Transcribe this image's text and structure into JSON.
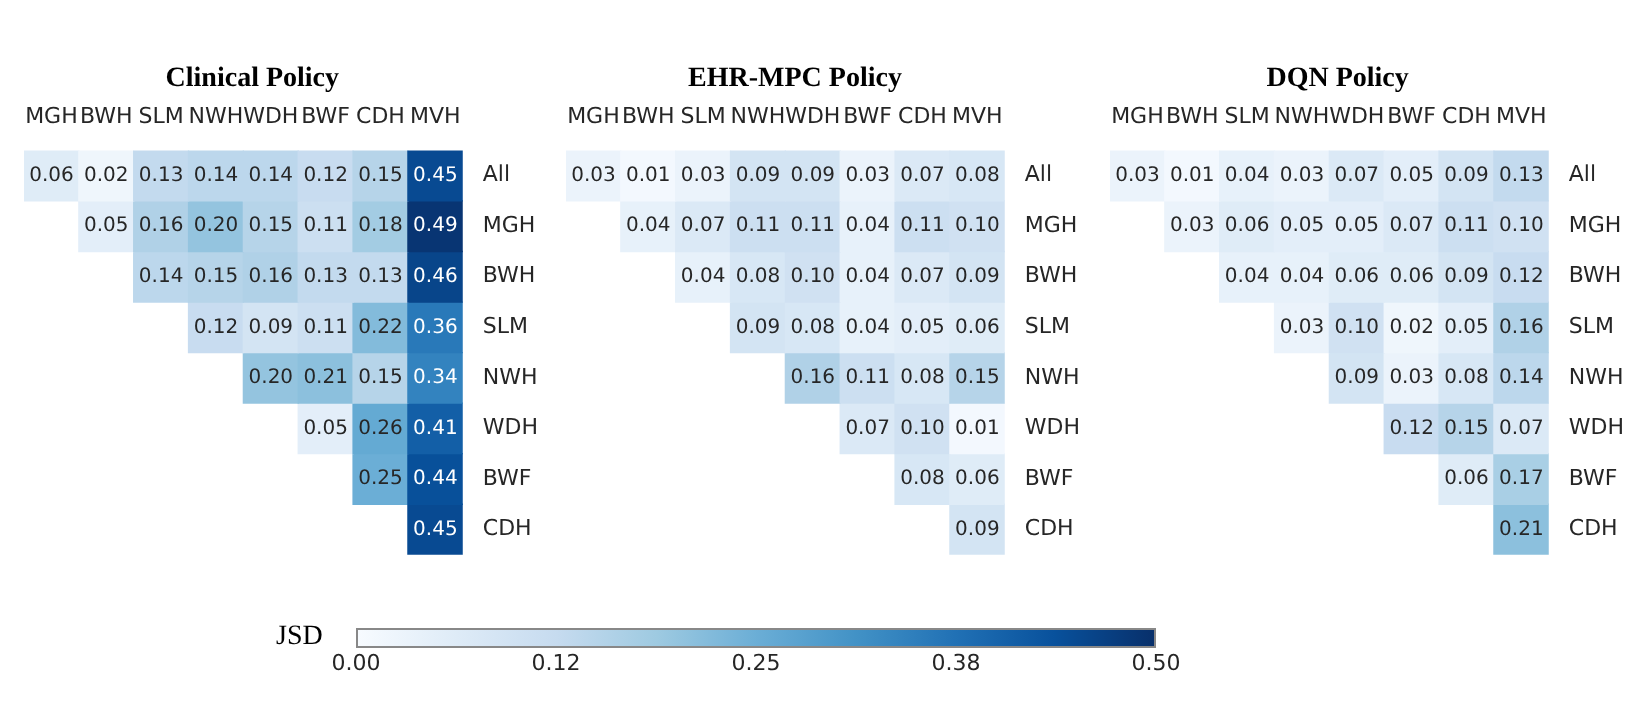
{
  "chart_data": [
    {
      "type": "heatmap",
      "title": "Clinical Policy",
      "categories": [
        "MGH",
        "BWH",
        "SLM",
        "NWH",
        "WDH",
        "BWF",
        "CDH",
        "MVH"
      ],
      "y_categories": [
        "All",
        "MGH",
        "BWH",
        "SLM",
        "NWH",
        "WDH",
        "BWF",
        "CDH"
      ],
      "cells": [
        [
          0.06,
          0.02,
          0.13,
          0.14,
          0.14,
          0.12,
          0.15,
          0.45
        ],
        [
          null,
          0.05,
          0.16,
          0.2,
          0.15,
          0.11,
          0.18,
          0.49
        ],
        [
          null,
          null,
          0.14,
          0.15,
          0.16,
          0.13,
          0.13,
          0.46
        ],
        [
          null,
          null,
          null,
          0.12,
          0.09,
          0.11,
          0.22,
          0.36
        ],
        [
          null,
          null,
          null,
          null,
          0.2,
          0.21,
          0.15,
          0.34
        ],
        [
          null,
          null,
          null,
          null,
          null,
          0.05,
          0.26,
          0.41
        ],
        [
          null,
          null,
          null,
          null,
          null,
          null,
          0.25,
          0.44
        ],
        [
          null,
          null,
          null,
          null,
          null,
          null,
          null,
          0.45
        ]
      ],
      "cell_labels": [
        [
          "0.06",
          "0.02",
          "0.13",
          "0.14",
          "0.14",
          "0.12",
          "0.15",
          "0.45"
        ],
        [
          null,
          "0.05",
          "0.16",
          "0.20",
          "0.15",
          "0.11",
          "0.18",
          "0.49"
        ],
        [
          null,
          null,
          "0.14",
          "0.15",
          "0.16",
          "0.13",
          "0.13",
          "0.46"
        ],
        [
          null,
          null,
          null,
          "0.12",
          "0.09",
          "0.11",
          "0.22",
          "0.36"
        ],
        [
          null,
          null,
          null,
          null,
          "0.20",
          "0.21",
          "0.15",
          "0.34"
        ],
        [
          null,
          null,
          null,
          null,
          null,
          "0.05",
          "0.26",
          "0.41"
        ],
        [
          null,
          null,
          null,
          null,
          null,
          null,
          "0.25",
          "0.44"
        ],
        [
          null,
          null,
          null,
          null,
          null,
          null,
          null,
          "0.45"
        ]
      ],
      "data_labels": true,
      "clabel": "JSD",
      "clim": [
        0,
        0.5
      ],
      "cticks": [
        {
          "value": 0,
          "label": "0.00"
        },
        {
          "value": 0.125,
          "label": "0.12"
        },
        {
          "value": 0.25,
          "label": "0.25"
        },
        {
          "value": 0.375,
          "label": "0.38"
        },
        {
          "value": 0.5,
          "label": "0.50"
        }
      ]
    },
    {
      "type": "heatmap",
      "title": "EHR-MPC Policy",
      "categories": [
        "MGH",
        "BWH",
        "SLM",
        "NWH",
        "WDH",
        "BWF",
        "CDH",
        "MVH"
      ],
      "y_categories": [
        "All",
        "MGH",
        "BWH",
        "SLM",
        "NWH",
        "WDH",
        "BWF",
        "CDH"
      ],
      "cells": [
        [
          0.03,
          0.01,
          0.03,
          0.09,
          0.09,
          0.03,
          0.07,
          0.08
        ],
        [
          null,
          0.04,
          0.07,
          0.11,
          0.11,
          0.04,
          0.11,
          0.1
        ],
        [
          null,
          null,
          0.04,
          0.08,
          0.1,
          0.04,
          0.07,
          0.09
        ],
        [
          null,
          null,
          null,
          0.09,
          0.08,
          0.04,
          0.05,
          0.06
        ],
        [
          null,
          null,
          null,
          null,
          0.16,
          0.11,
          0.08,
          0.15
        ],
        [
          null,
          null,
          null,
          null,
          null,
          0.07,
          0.1,
          0.01
        ],
        [
          null,
          null,
          null,
          null,
          null,
          null,
          0.08,
          0.06
        ],
        [
          null,
          null,
          null,
          null,
          null,
          null,
          null,
          0.09
        ]
      ],
      "cell_labels": [
        [
          "0.03",
          "0.01",
          "0.03",
          "0.09",
          "0.09",
          "0.03",
          "0.07",
          "0.08"
        ],
        [
          null,
          "0.04",
          "0.07",
          "0.11",
          "0.11",
          "0.04",
          "0.11",
          "0.10"
        ],
        [
          null,
          null,
          "0.04",
          "0.08",
          "0.10",
          "0.04",
          "0.07",
          "0.09"
        ],
        [
          null,
          null,
          null,
          "0.09",
          "0.08",
          "0.04",
          "0.05",
          "0.06"
        ],
        [
          null,
          null,
          null,
          null,
          "0.16",
          "0.11",
          "0.08",
          "0.15"
        ],
        [
          null,
          null,
          null,
          null,
          null,
          "0.07",
          "0.10",
          "0.01"
        ],
        [
          null,
          null,
          null,
          null,
          null,
          null,
          "0.08",
          "0.06"
        ],
        [
          null,
          null,
          null,
          null,
          null,
          null,
          null,
          "0.09"
        ]
      ],
      "data_labels": true
    },
    {
      "type": "heatmap",
      "title": "DQN Policy",
      "categories": [
        "MGH",
        "BWH",
        "SLM",
        "NWH",
        "WDH",
        "BWF",
        "CDH",
        "MVH"
      ],
      "y_categories": [
        "All",
        "MGH",
        "BWH",
        "SLM",
        "NWH",
        "WDH",
        "BWF",
        "CDH"
      ],
      "cells": [
        [
          0.03,
          0.01,
          0.04,
          0.03,
          0.07,
          0.05,
          0.09,
          0.13
        ],
        [
          null,
          0.03,
          0.06,
          0.05,
          0.05,
          0.07,
          0.11,
          0.1
        ],
        [
          null,
          null,
          0.04,
          0.04,
          0.06,
          0.06,
          0.09,
          0.12
        ],
        [
          null,
          null,
          null,
          0.03,
          0.1,
          0.02,
          0.05,
          0.16
        ],
        [
          null,
          null,
          null,
          null,
          0.09,
          0.03,
          0.08,
          0.14
        ],
        [
          null,
          null,
          null,
          null,
          null,
          0.12,
          0.15,
          0.07
        ],
        [
          null,
          null,
          null,
          null,
          null,
          null,
          0.06,
          0.17
        ],
        [
          null,
          null,
          null,
          null,
          null,
          null,
          null,
          0.21
        ]
      ],
      "cell_labels": [
        [
          "0.03",
          "0.01",
          "0.04",
          "0.03",
          "0.07",
          "0.05",
          "0.09",
          "0.13"
        ],
        [
          null,
          "0.03",
          "0.06",
          "0.05",
          "0.05",
          "0.07",
          "0.11",
          "0.10"
        ],
        [
          null,
          null,
          "0.04",
          "0.04",
          "0.06",
          "0.06",
          "0.09",
          "0.12"
        ],
        [
          null,
          null,
          null,
          "0.03",
          "0.10",
          "0.02",
          "0.05",
          "0.16"
        ],
        [
          null,
          null,
          null,
          null,
          "0.09",
          "0.03",
          "0.08",
          "0.14"
        ],
        [
          null,
          null,
          null,
          null,
          null,
          "0.12",
          "0.15",
          "0.07"
        ],
        [
          null,
          null,
          null,
          null,
          null,
          null,
          "0.06",
          "0.17"
        ],
        [
          null,
          null,
          null,
          null,
          null,
          null,
          null,
          "0.21"
        ]
      ],
      "data_labels": true
    }
  ]
}
